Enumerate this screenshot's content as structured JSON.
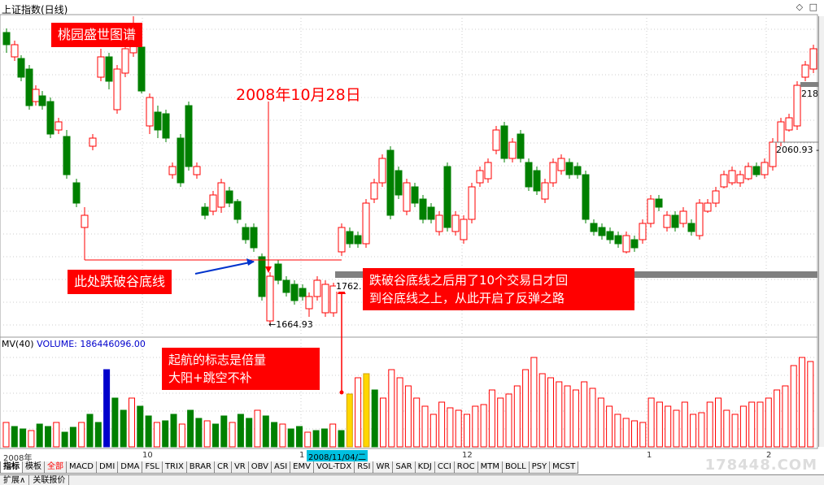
{
  "window": {
    "title": "上证指数(日线)",
    "controls": "◇ □"
  },
  "annotations": {
    "top_label": "桃园盛世图谱",
    "date_label": "2008年10月28日",
    "break_label": "此处跌破谷底线",
    "recover_label_line1": "跌破谷底线之后用了10个交易日才回",
    "recover_label_line2": "到谷底线之上，从此开启了反弹之路",
    "start_label_line1": "起航的标志是倍量",
    "start_label_line2": "大阳+跳空不补"
  },
  "price_tags": {
    "low": "←1664.93",
    "gap_low": "1762.",
    "right_1": "2060.93 -",
    "right_2": "218"
  },
  "volume": {
    "name": "MV(40)",
    "volume_label": "VOLUME: 186446096.00"
  },
  "x_axis": {
    "label_2008": "2008年",
    "label_10": "10",
    "label_11": "1",
    "label_12": "12",
    "label_1": "1",
    "label_2": "2",
    "cursor_date": "2008/11/04/二"
  },
  "tabs": [
    "指标",
    "模板",
    "全部",
    "MACD",
    "DMI",
    "DMA",
    "FSL",
    "TRIX",
    "BRAR",
    "CR",
    "VR",
    "OBV",
    "ASI",
    "EMV",
    "VOL-TDX",
    "RSI",
    "WR",
    "SAR",
    "KDJ",
    "CCI",
    "ROC",
    "MTM",
    "BOLL",
    "PSY",
    "MCST"
  ],
  "bottom_bar": [
    "扩展∧",
    "关联报价"
  ],
  "watermark": "178448.COM",
  "colors": {
    "up": "#ff0000",
    "down": "#008000",
    "highlight_blue": "#0000cc",
    "highlight_yellow": "#ffd700",
    "gray_line": "#808080"
  }
}
